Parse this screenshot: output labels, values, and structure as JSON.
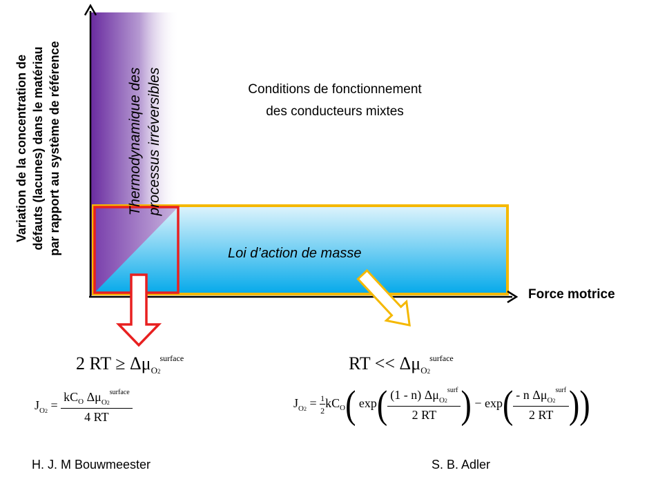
{
  "axes": {
    "y_label_lines": [
      "Variation de la concentration de",
      "défauts (lacunes) dans le matériau",
      "par rapport au système de référence"
    ],
    "x_label": "Force motrice"
  },
  "regions": {
    "thermo_lines": [
      "Thermodynamique des",
      "processus irréversibles"
    ],
    "conditions_lines": [
      "Conditions de fonctionnement",
      "des conducteurs mixtes"
    ],
    "mass_action": "Loi d’action de masse"
  },
  "left": {
    "condition": {
      "lhs": "2 RT ≥ Δμ",
      "sub": "O",
      "sub2": "2",
      "sup": "surface"
    },
    "flux": {
      "J": "J",
      "J_sub": "O",
      "J_sub2": "2",
      "eq": "=",
      "num": "kC",
      "num_sub": "O",
      "num_mid": " Δμ",
      "num_mu_sub": "O",
      "num_mu_sub2": "2",
      "num_sup": "surface",
      "den": "4 RT"
    },
    "author": "H. J. M Bouwmeester"
  },
  "right": {
    "condition": {
      "lhs": "RT << Δμ",
      "sub": "O",
      "sub2": "2",
      "sup": "surface"
    },
    "flux": {
      "J": "J",
      "J_sub": "O",
      "J_sub2": "2",
      "eq": "= ",
      "half_num": "1",
      "half_den": "2",
      "kc": "kC",
      "kc_sub": "O",
      "exp1": "exp",
      "frac1_num": "(1 - n)  Δμ",
      "frac1_sup": "surf",
      "frac_mu_sub": "O",
      "frac_mu_sub2": "2",
      "frac_den": "2 RT",
      "minus": "− exp",
      "frac2_num": "- n  Δμ",
      "frac2_sup": "surf"
    },
    "author": "S. B. Adler"
  },
  "colors": {
    "purple": "#6a2ca0",
    "blue": "#0aaee8",
    "orange_box": "#f5b800",
    "red_box": "#e82020",
    "axis": "#000000"
  }
}
